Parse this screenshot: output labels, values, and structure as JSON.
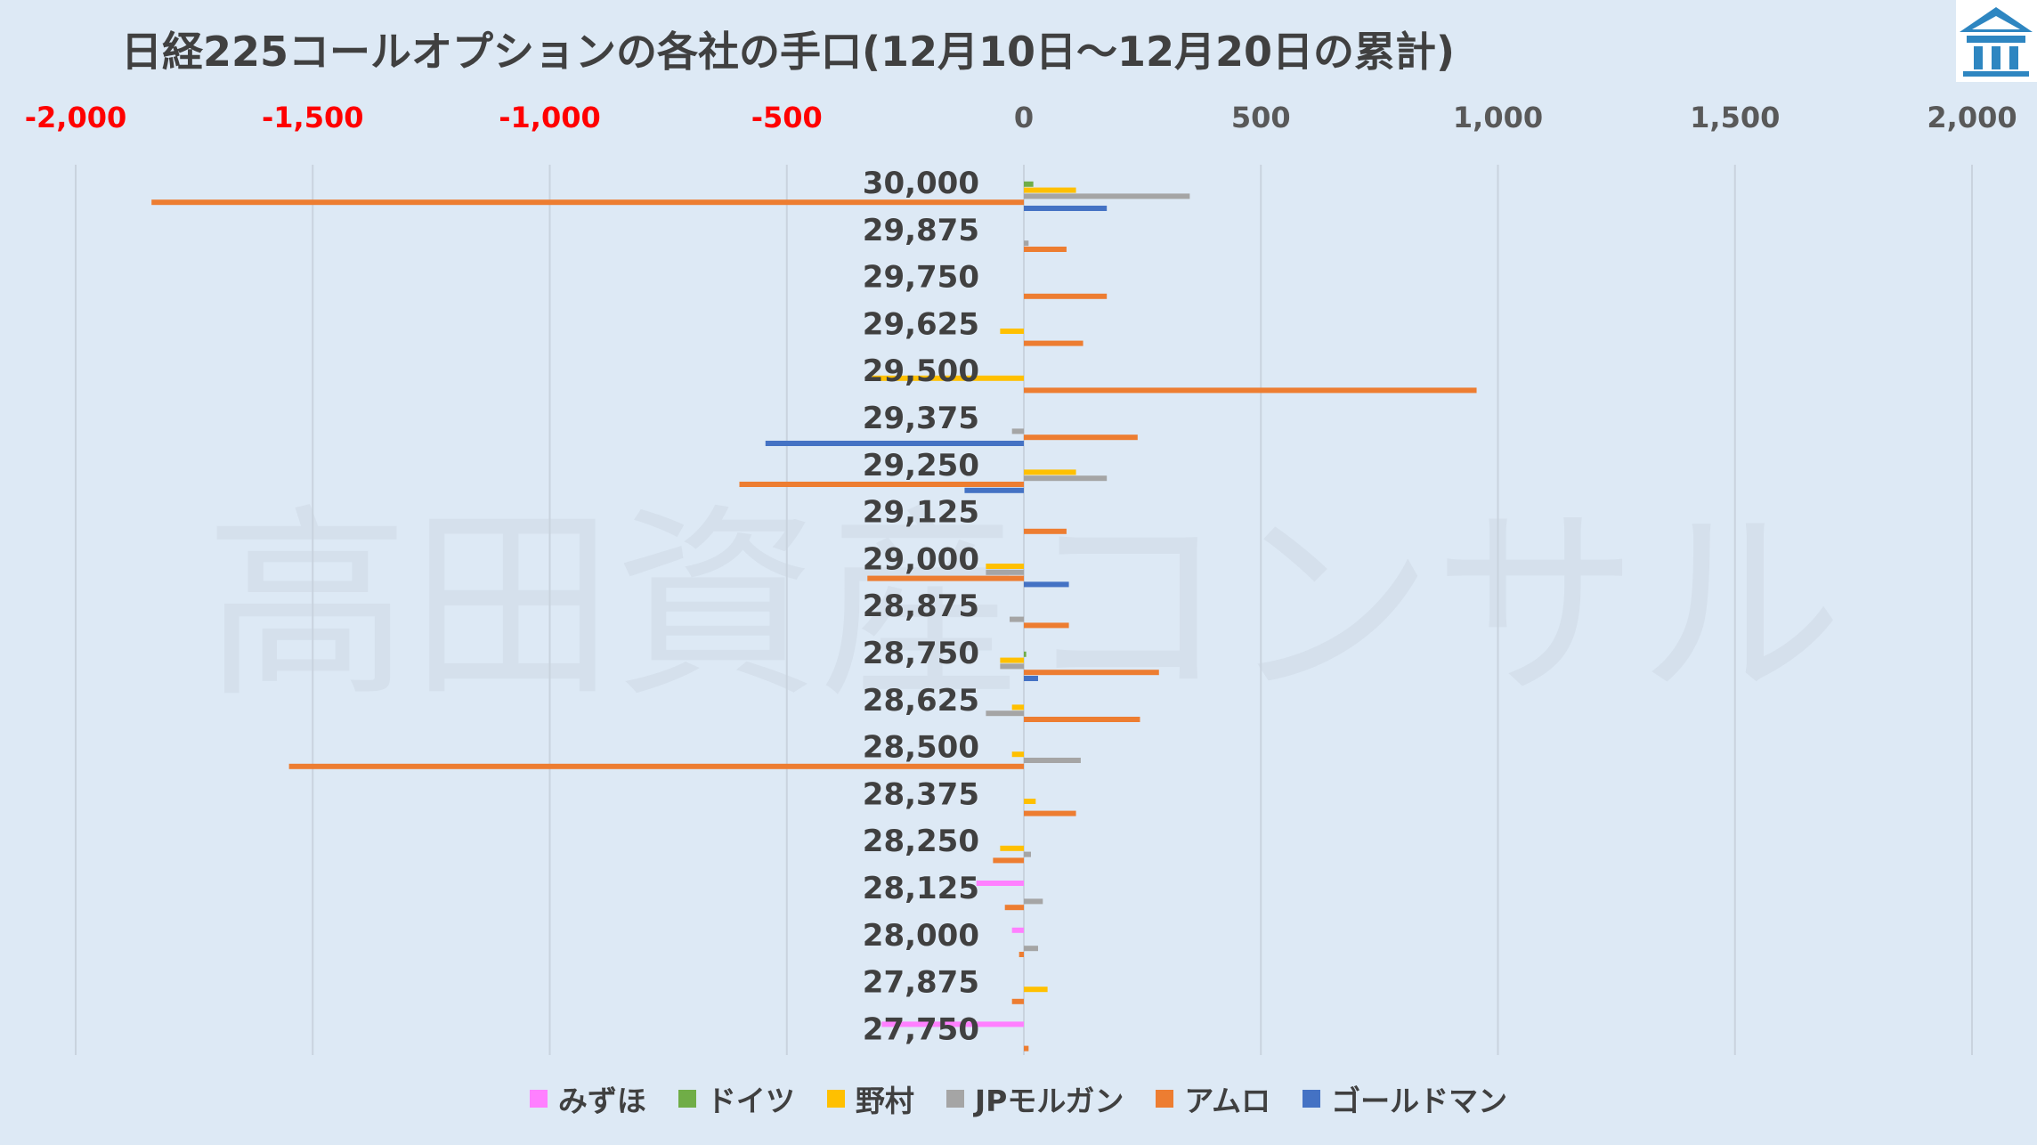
{
  "title": "日経225コールオプションの各社の手口(12月10日～12月20日の累計)",
  "watermark": "高田資産コンサル",
  "logo": "building-logo",
  "colors": {
    "background": "#dde9f5",
    "negative_tick": "#ff0000",
    "positive_tick": "#595959",
    "grid": "#c9d3de"
  },
  "chart_data": {
    "type": "bar",
    "orientation": "horizontal",
    "title": "日経225コールオプションの各社の手口(12月10日～12月20日の累計)",
    "xlim": [
      -2000,
      2000
    ],
    "x_ticks": [
      -2000,
      -1500,
      -1000,
      -500,
      0,
      500,
      1000,
      1500,
      2000
    ],
    "x_tick_labels": [
      "-2,000",
      "-1,500",
      "-1,000",
      "-500",
      "0",
      "500",
      "1,000",
      "1,500",
      "2,000"
    ],
    "x_tick_position": "top",
    "grid": true,
    "legend_position": "bottom",
    "categories": [
      "30,000",
      "29,875",
      "29,750",
      "29,625",
      "29,500",
      "29,375",
      "29,250",
      "29,125",
      "29,000",
      "28,875",
      "28,750",
      "28,625",
      "28,500",
      "28,375",
      "28,250",
      "28,125",
      "28,000",
      "27,875",
      "27,750"
    ],
    "series": [
      {
        "name": "みずほ",
        "color": "#ff80ff",
        "values": [
          0,
          0,
          0,
          0,
          0,
          0,
          0,
          0,
          0,
          0,
          0,
          0,
          0,
          0,
          0,
          -100,
          -25,
          0,
          -300
        ]
      },
      {
        "name": "ドイツ",
        "color": "#70ad47",
        "values": [
          20,
          0,
          0,
          0,
          0,
          0,
          0,
          0,
          0,
          0,
          5,
          0,
          0,
          0,
          0,
          0,
          0,
          0,
          0
        ]
      },
      {
        "name": "野村",
        "color": "#ffc000",
        "values": [
          110,
          0,
          0,
          -50,
          -320,
          0,
          110,
          0,
          -80,
          0,
          -50,
          -25,
          -25,
          25,
          -50,
          0,
          0,
          50,
          0
        ]
      },
      {
        "name": "JPモルガン",
        "color": "#a5a5a5",
        "values": [
          350,
          10,
          0,
          0,
          0,
          -25,
          175,
          0,
          -80,
          -30,
          -50,
          -80,
          120,
          0,
          15,
          40,
          30,
          0,
          0
        ]
      },
      {
        "name": "アムロ",
        "color": "#ed7d31",
        "values": [
          -1840,
          90,
          175,
          125,
          955,
          240,
          -600,
          90,
          -330,
          95,
          285,
          245,
          -1550,
          110,
          -65,
          -40,
          -10,
          -25,
          10
        ]
      },
      {
        "name": "ゴールドマン",
        "color": "#4472c4",
        "values": [
          175,
          0,
          0,
          0,
          0,
          -545,
          -125,
          0,
          95,
          0,
          30,
          0,
          0,
          0,
          0,
          0,
          0,
          0,
          0
        ]
      }
    ]
  }
}
